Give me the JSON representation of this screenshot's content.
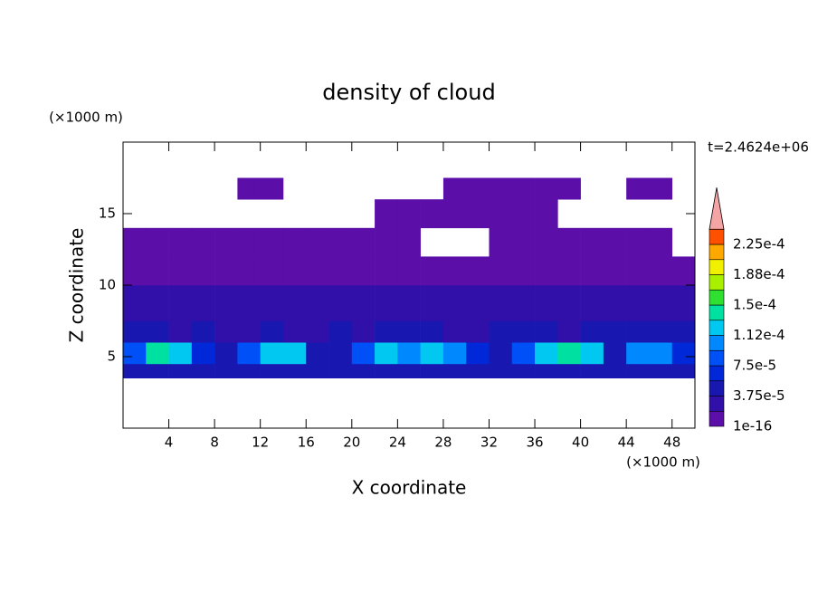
{
  "chart_data": {
    "type": "contour",
    "title": "density of cloud",
    "xlabel": "X coordinate",
    "ylabel": "Z coordinate",
    "xunit": "(×1000 m)",
    "yunit": "(×1000 m)",
    "time_label": "t=2.4624e+06",
    "xlim": [
      0,
      50
    ],
    "ylim": [
      0,
      20
    ],
    "xticks": [
      4,
      8,
      12,
      16,
      20,
      24,
      28,
      32,
      36,
      40,
      44,
      48
    ],
    "yticks": [
      5,
      10,
      15
    ],
    "x_edges": [
      0,
      2,
      4,
      6,
      8,
      10,
      12,
      14,
      16,
      18,
      20,
      22,
      24,
      26,
      28,
      30,
      32,
      34,
      36,
      38,
      40,
      42,
      44,
      46,
      48,
      50
    ],
    "z_edges": [
      3.5,
      4.5,
      6,
      7.5,
      10,
      12,
      14,
      16,
      17.5
    ],
    "values": [
      [
        4e-05,
        5e-05,
        5e-05,
        4e-05,
        4e-05,
        4e-05,
        5e-05,
        5e-05,
        4e-05,
        4e-05,
        4e-05,
        5e-05,
        5e-05,
        5e-05,
        5e-05,
        4e-05,
        4e-05,
        4e-05,
        5e-05,
        5e-05,
        5e-05,
        4e-05,
        4e-05,
        5e-05,
        4e-05
      ],
      [
        9e-05,
        0.00014,
        0.00013,
        6e-05,
        4e-05,
        9e-05,
        0.00013,
        0.00012,
        5e-05,
        4e-05,
        8e-05,
        0.00013,
        0.00011,
        0.00013,
        0.00011,
        6e-05,
        5e-05,
        8e-05,
        0.00013,
        0.00014,
        0.00012,
        5e-05,
        0.00011,
        0.0001,
        6e-05
      ],
      [
        4e-05,
        4e-05,
        3e-05,
        4e-05,
        3e-05,
        3e-05,
        4e-05,
        3e-05,
        3e-05,
        4e-05,
        3e-05,
        4e-05,
        4e-05,
        4e-05,
        3e-05,
        3e-05,
        4e-05,
        4e-05,
        4e-05,
        3e-05,
        4e-05,
        4e-05,
        5e-05,
        5e-05,
        5e-05
      ],
      [
        2.5e-05,
        2.5e-05,
        2e-05,
        2.5e-05,
        2e-05,
        2.5e-05,
        2e-05,
        2.5e-05,
        2.5e-05,
        2e-05,
        2e-05,
        2.5e-05,
        2e-05,
        2e-05,
        2.5e-05,
        2.5e-05,
        2e-05,
        2e-05,
        2.5e-05,
        2.5e-05,
        2e-05,
        2e-05,
        2.5e-05,
        2e-05,
        2.5e-05
      ],
      [
        1e-05,
        1e-05,
        1e-05,
        1e-05,
        1e-05,
        1e-05,
        1e-05,
        1e-05,
        1e-05,
        1e-05,
        1e-05,
        1e-05,
        1e-05,
        1e-05,
        1e-05,
        1e-05,
        1e-05,
        1e-05,
        1e-05,
        1e-05,
        1e-05,
        1e-05,
        1e-05,
        1e-05,
        1e-05
      ],
      [
        1e-05,
        1e-05,
        1e-05,
        1e-05,
        1e-05,
        1e-05,
        1e-05,
        1e-05,
        1e-05,
        1e-05,
        1e-05,
        1e-05,
        1e-05,
        null,
        null,
        null,
        1e-05,
        1e-05,
        1e-05,
        1e-05,
        1e-05,
        1e-05,
        1e-05,
        1e-05,
        null
      ],
      [
        null,
        null,
        null,
        null,
        null,
        null,
        null,
        null,
        null,
        null,
        null,
        1e-05,
        1e-05,
        1e-05,
        1e-05,
        1e-05,
        1e-05,
        1e-05,
        1e-05,
        null,
        null,
        null,
        null,
        null,
        null
      ],
      [
        null,
        null,
        null,
        null,
        null,
        1e-05,
        1e-05,
        null,
        null,
        null,
        null,
        null,
        null,
        null,
        1e-05,
        1e-05,
        1e-05,
        1e-05,
        1e-05,
        1e-05,
        null,
        null,
        1e-05,
        1e-05,
        null
      ]
    ],
    "levels": [
      {
        "value": 1e-16,
        "label": "1e-16"
      },
      1.875e-05,
      {
        "value": 3.75e-05,
        "label": "3.75e-5"
      },
      5.625e-05,
      {
        "value": 7.5e-05,
        "label": "7.5e-5"
      },
      9.375e-05,
      {
        "value": 0.000112,
        "label": "1.12e-4"
      },
      0.00013125,
      {
        "value": 0.00015,
        "label": "1.5e-4"
      },
      0.00016875,
      {
        "value": 0.000188,
        "label": "1.88e-4"
      },
      0.00020625,
      {
        "value": 0.000225,
        "label": "2.25e-4"
      }
    ],
    "level_colors": [
      "#5b0fa8",
      "#3010a8",
      "#1818b0",
      "#0028d8",
      "#0050f8",
      "#0088ff",
      "#00c8f0",
      "#00e0a0",
      "#30e030",
      "#a8f000",
      "#f0f000",
      "#ffa800",
      "#ff5000"
    ],
    "extend_color": "#f4a4a4"
  }
}
